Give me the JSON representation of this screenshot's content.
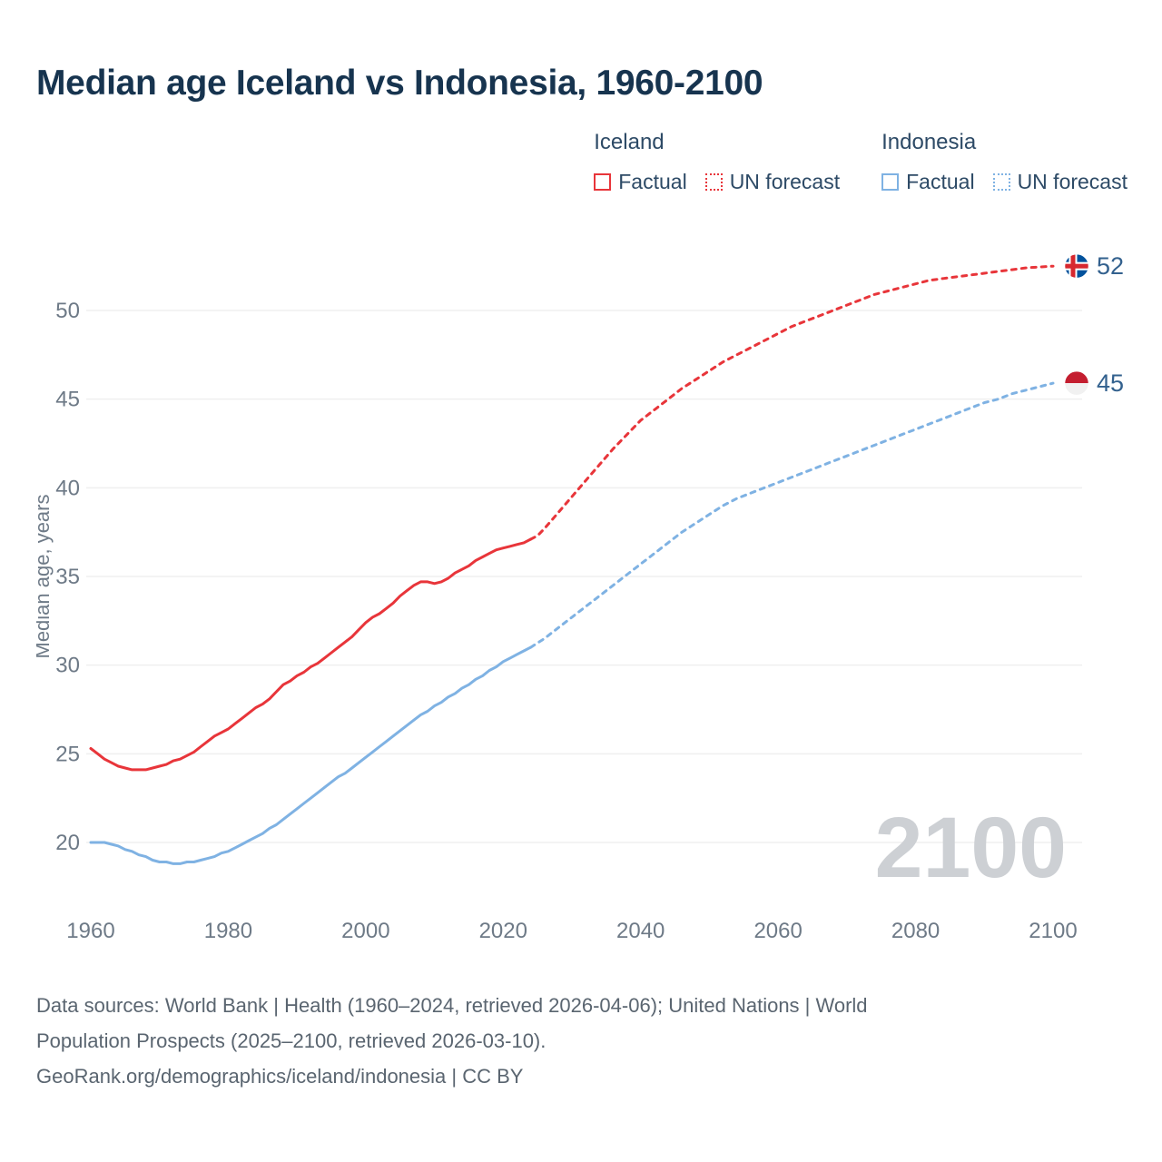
{
  "title": "Median age Iceland vs Indonesia, 1960-2100",
  "watermark": "2100",
  "legend": {
    "groups": [
      {
        "name": "Iceland",
        "color": "#e8353a",
        "items": [
          {
            "label": "Factual",
            "style": "solid"
          },
          {
            "label": "UN forecast",
            "style": "dashed"
          }
        ]
      },
      {
        "name": "Indonesia",
        "color": "#7fb2e3",
        "items": [
          {
            "label": "Factual",
            "style": "solid"
          },
          {
            "label": "UN forecast",
            "style": "dashed"
          }
        ]
      }
    ]
  },
  "end_labels": [
    {
      "flag": "iceland-flag",
      "value": "52.5",
      "y": 52.5,
      "color": "#33618e"
    },
    {
      "flag": "indonesia-flag",
      "value": "45.9",
      "y": 45.9,
      "color": "#33618e"
    }
  ],
  "footer": {
    "lines": [
      "Data sources: World Bank | Health (1960–2024, retrieved 2026-04-06); United Nations | World",
      "Population Prospects (2025–2100, retrieved 2026-03-10).",
      "GeoRank.org/demographics/iceland/indonesia | CC BY"
    ]
  },
  "chart_data": {
    "type": "line",
    "title": "Median age Iceland vs Indonesia, 1960-2100",
    "xlabel": "",
    "ylabel": "Median age, years",
    "xticks": [
      1960,
      1980,
      2000,
      2020,
      2040,
      2060,
      2080,
      2100
    ],
    "yticks": [
      20,
      25,
      30,
      35,
      40,
      45,
      50
    ],
    "xlim": [
      1960,
      2100
    ],
    "ylim": [
      18,
      54
    ],
    "grid": "horizontal",
    "legend_position": "top-right",
    "series": [
      {
        "name": "Iceland factual",
        "color": "#e8353a",
        "style": "solid",
        "points": [
          [
            1960,
            25.3
          ],
          [
            1961,
            25.0
          ],
          [
            1962,
            24.7
          ],
          [
            1963,
            24.5
          ],
          [
            1964,
            24.3
          ],
          [
            1965,
            24.2
          ],
          [
            1966,
            24.1
          ],
          [
            1967,
            24.1
          ],
          [
            1968,
            24.1
          ],
          [
            1969,
            24.2
          ],
          [
            1970,
            24.3
          ],
          [
            1971,
            24.4
          ],
          [
            1972,
            24.6
          ],
          [
            1973,
            24.7
          ],
          [
            1974,
            24.9
          ],
          [
            1975,
            25.1
          ],
          [
            1976,
            25.4
          ],
          [
            1977,
            25.7
          ],
          [
            1978,
            26.0
          ],
          [
            1979,
            26.2
          ],
          [
            1980,
            26.4
          ],
          [
            1981,
            26.7
          ],
          [
            1982,
            27.0
          ],
          [
            1983,
            27.3
          ],
          [
            1984,
            27.6
          ],
          [
            1985,
            27.8
          ],
          [
            1986,
            28.1
          ],
          [
            1987,
            28.5
          ],
          [
            1988,
            28.9
          ],
          [
            1989,
            29.1
          ],
          [
            1990,
            29.4
          ],
          [
            1991,
            29.6
          ],
          [
            1992,
            29.9
          ],
          [
            1993,
            30.1
          ],
          [
            1994,
            30.4
          ],
          [
            1995,
            30.7
          ],
          [
            1996,
            31.0
          ],
          [
            1997,
            31.3
          ],
          [
            1998,
            31.6
          ],
          [
            1999,
            32.0
          ],
          [
            2000,
            32.4
          ],
          [
            2001,
            32.7
          ],
          [
            2002,
            32.9
          ],
          [
            2003,
            33.2
          ],
          [
            2004,
            33.5
          ],
          [
            2005,
            33.9
          ],
          [
            2006,
            34.2
          ],
          [
            2007,
            34.5
          ],
          [
            2008,
            34.7
          ],
          [
            2009,
            34.7
          ],
          [
            2010,
            34.6
          ],
          [
            2011,
            34.7
          ],
          [
            2012,
            34.9
          ],
          [
            2013,
            35.2
          ],
          [
            2014,
            35.4
          ],
          [
            2015,
            35.6
          ],
          [
            2016,
            35.9
          ],
          [
            2017,
            36.1
          ],
          [
            2018,
            36.3
          ],
          [
            2019,
            36.5
          ],
          [
            2020,
            36.6
          ],
          [
            2021,
            36.7
          ],
          [
            2022,
            36.8
          ],
          [
            2023,
            36.9
          ],
          [
            2024,
            37.1
          ]
        ]
      },
      {
        "name": "Iceland UN forecast",
        "color": "#e8353a",
        "style": "dashed",
        "points": [
          [
            2024,
            37.1
          ],
          [
            2025,
            37.3
          ],
          [
            2026,
            37.7
          ],
          [
            2028,
            38.6
          ],
          [
            2030,
            39.5
          ],
          [
            2032,
            40.4
          ],
          [
            2034,
            41.3
          ],
          [
            2036,
            42.2
          ],
          [
            2038,
            43.0
          ],
          [
            2040,
            43.8
          ],
          [
            2042,
            44.4
          ],
          [
            2044,
            45.0
          ],
          [
            2046,
            45.6
          ],
          [
            2048,
            46.1
          ],
          [
            2050,
            46.6
          ],
          [
            2052,
            47.1
          ],
          [
            2054,
            47.5
          ],
          [
            2056,
            47.9
          ],
          [
            2058,
            48.3
          ],
          [
            2060,
            48.7
          ],
          [
            2062,
            49.1
          ],
          [
            2064,
            49.4
          ],
          [
            2066,
            49.7
          ],
          [
            2068,
            50.0
          ],
          [
            2070,
            50.3
          ],
          [
            2072,
            50.6
          ],
          [
            2074,
            50.9
          ],
          [
            2076,
            51.1
          ],
          [
            2078,
            51.3
          ],
          [
            2080,
            51.5
          ],
          [
            2082,
            51.7
          ],
          [
            2084,
            51.8
          ],
          [
            2086,
            51.9
          ],
          [
            2088,
            52.0
          ],
          [
            2090,
            52.1
          ],
          [
            2092,
            52.2
          ],
          [
            2094,
            52.3
          ],
          [
            2096,
            52.4
          ],
          [
            2098,
            52.45
          ],
          [
            2100,
            52.5
          ]
        ]
      },
      {
        "name": "Indonesia factual",
        "color": "#7fb2e3",
        "style": "solid",
        "points": [
          [
            1960,
            20.0
          ],
          [
            1961,
            20.0
          ],
          [
            1962,
            20.0
          ],
          [
            1963,
            19.9
          ],
          [
            1964,
            19.8
          ],
          [
            1965,
            19.6
          ],
          [
            1966,
            19.5
          ],
          [
            1967,
            19.3
          ],
          [
            1968,
            19.2
          ],
          [
            1969,
            19.0
          ],
          [
            1970,
            18.9
          ],
          [
            1971,
            18.9
          ],
          [
            1972,
            18.8
          ],
          [
            1973,
            18.8
          ],
          [
            1974,
            18.9
          ],
          [
            1975,
            18.9
          ],
          [
            1976,
            19.0
          ],
          [
            1977,
            19.1
          ],
          [
            1978,
            19.2
          ],
          [
            1979,
            19.4
          ],
          [
            1980,
            19.5
          ],
          [
            1981,
            19.7
          ],
          [
            1982,
            19.9
          ],
          [
            1983,
            20.1
          ],
          [
            1984,
            20.3
          ],
          [
            1985,
            20.5
          ],
          [
            1986,
            20.8
          ],
          [
            1987,
            21.0
          ],
          [
            1988,
            21.3
          ],
          [
            1989,
            21.6
          ],
          [
            1990,
            21.9
          ],
          [
            1991,
            22.2
          ],
          [
            1992,
            22.5
          ],
          [
            1993,
            22.8
          ],
          [
            1994,
            23.1
          ],
          [
            1995,
            23.4
          ],
          [
            1996,
            23.7
          ],
          [
            1997,
            23.9
          ],
          [
            1998,
            24.2
          ],
          [
            1999,
            24.5
          ],
          [
            2000,
            24.8
          ],
          [
            2001,
            25.1
          ],
          [
            2002,
            25.4
          ],
          [
            2003,
            25.7
          ],
          [
            2004,
            26.0
          ],
          [
            2005,
            26.3
          ],
          [
            2006,
            26.6
          ],
          [
            2007,
            26.9
          ],
          [
            2008,
            27.2
          ],
          [
            2009,
            27.4
          ],
          [
            2010,
            27.7
          ],
          [
            2011,
            27.9
          ],
          [
            2012,
            28.2
          ],
          [
            2013,
            28.4
          ],
          [
            2014,
            28.7
          ],
          [
            2015,
            28.9
          ],
          [
            2016,
            29.2
          ],
          [
            2017,
            29.4
          ],
          [
            2018,
            29.7
          ],
          [
            2019,
            29.9
          ],
          [
            2020,
            30.2
          ],
          [
            2021,
            30.4
          ],
          [
            2022,
            30.6
          ],
          [
            2023,
            30.8
          ],
          [
            2024,
            31.0
          ]
        ]
      },
      {
        "name": "Indonesia UN forecast",
        "color": "#7fb2e3",
        "style": "dashed",
        "points": [
          [
            2024,
            31.0
          ],
          [
            2026,
            31.5
          ],
          [
            2028,
            32.1
          ],
          [
            2030,
            32.7
          ],
          [
            2032,
            33.3
          ],
          [
            2034,
            33.9
          ],
          [
            2036,
            34.5
          ],
          [
            2038,
            35.1
          ],
          [
            2040,
            35.7
          ],
          [
            2042,
            36.3
          ],
          [
            2044,
            36.9
          ],
          [
            2046,
            37.5
          ],
          [
            2048,
            38.0
          ],
          [
            2050,
            38.5
          ],
          [
            2052,
            39.0
          ],
          [
            2054,
            39.4
          ],
          [
            2056,
            39.7
          ],
          [
            2058,
            40.0
          ],
          [
            2060,
            40.3
          ],
          [
            2062,
            40.6
          ],
          [
            2064,
            40.9
          ],
          [
            2066,
            41.2
          ],
          [
            2068,
            41.5
          ],
          [
            2070,
            41.8
          ],
          [
            2072,
            42.1
          ],
          [
            2074,
            42.4
          ],
          [
            2076,
            42.7
          ],
          [
            2078,
            43.0
          ],
          [
            2080,
            43.3
          ],
          [
            2082,
            43.6
          ],
          [
            2084,
            43.9
          ],
          [
            2086,
            44.2
          ],
          [
            2088,
            44.5
          ],
          [
            2090,
            44.8
          ],
          [
            2092,
            45.0
          ],
          [
            2094,
            45.3
          ],
          [
            2096,
            45.5
          ],
          [
            2098,
            45.7
          ],
          [
            2100,
            45.9
          ]
        ]
      }
    ]
  }
}
